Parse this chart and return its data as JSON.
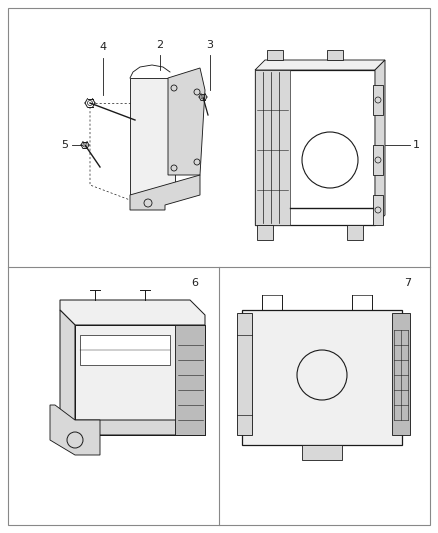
{
  "bg_color": "#ffffff",
  "border_color": "#888888",
  "line_color": "#1a1a1a",
  "label_color": "#222222",
  "fig_width": 4.38,
  "fig_height": 5.33,
  "dpi": 100,
  "fill_light": "#f0f0f0",
  "fill_mid": "#d8d8d8",
  "fill_dark": "#bbbbbb",
  "fill_white": "#ffffff"
}
